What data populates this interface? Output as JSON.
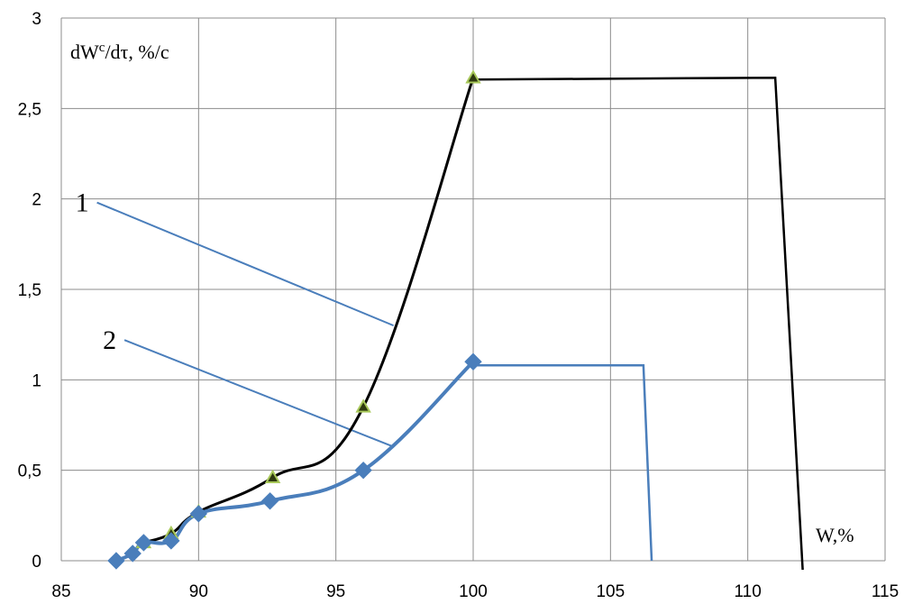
{
  "chart_data": {
    "type": "line",
    "title": "",
    "xlabel": "W,%",
    "ylabel": "dWc/dτ, %/c",
    "ylabel_parts": {
      "main": "dW",
      "sup": "c",
      "rest": "/dτ, %/c"
    },
    "xlim": [
      85,
      115
    ],
    "ylim": [
      0,
      3
    ],
    "x_ticks": [
      "85",
      "90",
      "95",
      "100",
      "105",
      "110",
      "115"
    ],
    "y_ticks": [
      "0",
      "0,5",
      "1",
      "1,5",
      "2",
      "2,5",
      "3"
    ],
    "grid": true,
    "legend": "none",
    "series": [
      {
        "name": "1",
        "color": "#000000",
        "marker": "triangle",
        "marker_fill": "#2f3a10",
        "marker_edge": "#a8c85a",
        "markers": [
          {
            "x": 88,
            "y": 0.1
          },
          {
            "x": 89,
            "y": 0.15
          },
          {
            "x": 90,
            "y": 0.27
          },
          {
            "x": 92.7,
            "y": 0.46
          },
          {
            "x": 96,
            "y": 0.85
          },
          {
            "x": 100,
            "y": 2.67
          }
        ],
        "extension": [
          {
            "x": 100,
            "y": 2.66
          },
          {
            "x": 111,
            "y": 2.67
          },
          {
            "x": 112,
            "y": -0.05
          }
        ]
      },
      {
        "name": "2",
        "color": "#4a7ebb",
        "marker": "diamond",
        "marker_fill": "#4a7ebb",
        "markers": [
          {
            "x": 87,
            "y": 0.0
          },
          {
            "x": 87.6,
            "y": 0.04
          },
          {
            "x": 88,
            "y": 0.1
          },
          {
            "x": 89,
            "y": 0.11
          },
          {
            "x": 90,
            "y": 0.26
          },
          {
            "x": 92.6,
            "y": 0.33
          },
          {
            "x": 96,
            "y": 0.5
          },
          {
            "x": 100,
            "y": 1.1
          }
        ],
        "extension": [
          {
            "x": 100,
            "y": 1.08
          },
          {
            "x": 106.2,
            "y": 1.08
          },
          {
            "x": 106.5,
            "y": 0.0
          }
        ]
      }
    ],
    "annotations": [
      {
        "text": "1",
        "leader_from": {
          "x": 86.3,
          "y": 1.98
        },
        "leader_to": {
          "x": 97.1,
          "y": 1.3
        }
      },
      {
        "text": "2",
        "leader_from": {
          "x": 87.3,
          "y": 1.22
        },
        "leader_to": {
          "x": 97.1,
          "y": 0.63
        }
      }
    ]
  }
}
